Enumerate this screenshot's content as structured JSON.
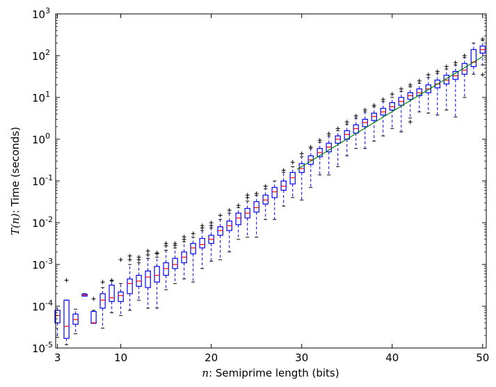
{
  "chart_data": {
    "type": "box",
    "xlabel": {
      "var": "n",
      "text": ": Semiprime length (bits)"
    },
    "ylabel": {
      "var": "T(n)",
      "text": ": Time (seconds)"
    },
    "xlim": [
      2.8,
      50.4
    ],
    "ylim": [
      1e-05,
      1000
    ],
    "yscale": "log",
    "x_ticks": [
      3,
      10,
      20,
      30,
      40,
      50
    ],
    "y_ticks": [
      {
        "exp": -5,
        "label_base": "10",
        "label_exp": "-5"
      },
      {
        "exp": -4,
        "label_base": "10",
        "label_exp": "-4"
      },
      {
        "exp": -3,
        "label_base": "10",
        "label_exp": "-3"
      },
      {
        "exp": -2,
        "label_base": "10",
        "label_exp": "-2"
      },
      {
        "exp": -1,
        "label_base": "10",
        "label_exp": "-1"
      },
      {
        "exp": 0,
        "label_base": "10",
        "label_exp": "0"
      },
      {
        "exp": 1,
        "label_base": "10",
        "label_exp": "1"
      },
      {
        "exp": 2,
        "label_base": "10",
        "label_exp": "2"
      },
      {
        "exp": 3,
        "label_base": "10",
        "label_exp": "3"
      }
    ],
    "grid": false,
    "colors": {
      "box": "#0000ff",
      "median": "#ff0000",
      "flier": "#000000",
      "fit": "#008000"
    },
    "fit_line": {
      "x": [
        29.5,
        50
      ],
      "y": [
        0.19,
        95
      ]
    },
    "boxes": [
      {
        "n": 3,
        "whislo": 1.8e-05,
        "q1": 4e-05,
        "med": 6e-05,
        "q3": 8e-05,
        "whishi": 0.0001,
        "fliers": []
      },
      {
        "n": 4,
        "whislo": 1.2e-05,
        "q1": 1.7e-05,
        "med": 3.3e-05,
        "q3": 0.00014,
        "whishi": 0.00014,
        "fliers": [
          0.00042
        ]
      },
      {
        "n": 5,
        "whislo": 2.2e-05,
        "q1": 3.7e-05,
        "med": 4.8e-05,
        "q3": 6.5e-05,
        "whishi": 8.5e-05,
        "fliers": []
      },
      {
        "n": 6,
        "whislo": 0.000175,
        "q1": 0.000175,
        "med": 0.000185,
        "q3": 0.000195,
        "whishi": 0.0002,
        "fliers": []
      },
      {
        "n": 7,
        "whislo": 3.9e-05,
        "q1": 3.9e-05,
        "med": 4e-05,
        "q3": 7.5e-05,
        "whishi": 8e-05,
        "fliers": [
          0.00015
        ]
      },
      {
        "n": 8,
        "whislo": 3e-05,
        "q1": 9e-05,
        "med": 0.00014,
        "q3": 0.0002,
        "whishi": 0.00028,
        "fliers": [
          0.00038
        ]
      },
      {
        "n": 9,
        "whislo": 7e-05,
        "q1": 0.00013,
        "med": 0.00016,
        "q3": 0.00032,
        "whishi": 0.0004,
        "fliers": [
          0.00042
        ]
      },
      {
        "n": 10,
        "whislo": 6e-05,
        "q1": 0.00013,
        "med": 0.00018,
        "q3": 0.00022,
        "whishi": 0.00035,
        "fliers": [
          0.0013
        ]
      },
      {
        "n": 11,
        "whislo": 8e-05,
        "q1": 0.0002,
        "med": 0.00035,
        "q3": 0.00045,
        "whishi": 0.001,
        "fliers": [
          0.0013,
          0.0016
        ]
      },
      {
        "n": 12,
        "whislo": 0.00014,
        "q1": 0.0003,
        "med": 0.0004,
        "q3": 0.00055,
        "whishi": 0.0011,
        "fliers": [
          0.0013,
          0.0015
        ]
      },
      {
        "n": 13,
        "whislo": 9e-05,
        "q1": 0.00028,
        "med": 0.0005,
        "q3": 0.0007,
        "whishi": 0.0014,
        "fliers": [
          0.0017,
          0.0021
        ]
      },
      {
        "n": 14,
        "whislo": 9e-05,
        "q1": 0.00038,
        "med": 0.00055,
        "q3": 0.0009,
        "whishi": 0.0015,
        "fliers": [
          0.0018,
          0.0019
        ]
      },
      {
        "n": 15,
        "whislo": 0.00025,
        "q1": 0.00055,
        "med": 0.0008,
        "q3": 0.0011,
        "whishi": 0.0022,
        "fliers": [
          0.0028,
          0.0032
        ]
      },
      {
        "n": 16,
        "whislo": 0.00035,
        "q1": 0.0008,
        "med": 0.001,
        "q3": 0.0014,
        "whishi": 0.0025,
        "fliers": [
          0.0029,
          0.0032
        ]
      },
      {
        "n": 17,
        "whislo": 0.00045,
        "q1": 0.0011,
        "med": 0.0015,
        "q3": 0.002,
        "whishi": 0.0035,
        "fliers": [
          0.004,
          0.0046
        ]
      },
      {
        "n": 18,
        "whislo": 0.00038,
        "q1": 0.0018,
        "med": 0.0025,
        "q3": 0.0032,
        "whishi": 0.0045,
        "fliers": [
          0.0055
        ]
      },
      {
        "n": 19,
        "whislo": 0.0008,
        "q1": 0.0025,
        "med": 0.003,
        "q3": 0.0042,
        "whishi": 0.0065,
        "fliers": [
          0.0075,
          0.0085
        ]
      },
      {
        "n": 20,
        "whislo": 0.0012,
        "q1": 0.0032,
        "med": 0.004,
        "q3": 0.005,
        "whishi": 0.0075,
        "fliers": [
          0.0085,
          0.01
        ]
      },
      {
        "n": 21,
        "whislo": 0.0013,
        "q1": 0.005,
        "med": 0.0065,
        "q3": 0.008,
        "whishi": 0.012,
        "fliers": [
          0.015
        ]
      },
      {
        "n": 22,
        "whislo": 0.002,
        "q1": 0.0065,
        "med": 0.0085,
        "q3": 0.011,
        "whishi": 0.017,
        "fliers": [
          0.02
        ]
      },
      {
        "n": 23,
        "whislo": 0.004,
        "q1": 0.009,
        "med": 0.013,
        "q3": 0.017,
        "whishi": 0.023,
        "fliers": [
          0.026
        ]
      },
      {
        "n": 24,
        "whislo": 0.0045,
        "q1": 0.013,
        "med": 0.017,
        "q3": 0.022,
        "whishi": 0.033,
        "fliers": [
          0.04,
          0.046
        ]
      },
      {
        "n": 25,
        "whislo": 0.0045,
        "q1": 0.018,
        "med": 0.023,
        "q3": 0.032,
        "whishi": 0.045,
        "fliers": [
          0.05
        ]
      },
      {
        "n": 26,
        "whislo": 0.012,
        "q1": 0.028,
        "med": 0.035,
        "q3": 0.046,
        "whishi": 0.065,
        "fliers": [
          0.075
        ]
      },
      {
        "n": 27,
        "whislo": 0.012,
        "q1": 0.04,
        "med": 0.055,
        "q3": 0.07,
        "whishi": 0.1,
        "fliers": []
      },
      {
        "n": 28,
        "whislo": 0.025,
        "q1": 0.06,
        "med": 0.075,
        "q3": 0.1,
        "whishi": 0.16,
        "fliers": [
          0.18
        ]
      },
      {
        "n": 29,
        "whislo": 0.04,
        "q1": 0.085,
        "med": 0.12,
        "q3": 0.16,
        "whishi": 0.22,
        "fliers": [
          0.28
        ]
      },
      {
        "n": 30,
        "whislo": 0.035,
        "q1": 0.16,
        "med": 0.2,
        "q3": 0.26,
        "whishi": 0.38,
        "fliers": [
          0.45
        ]
      },
      {
        "n": 31,
        "whislo": 0.07,
        "q1": 0.25,
        "med": 0.32,
        "q3": 0.4,
        "whishi": 0.6,
        "fliers": [
          0.65
        ]
      },
      {
        "n": 32,
        "whislo": 0.14,
        "q1": 0.38,
        "med": 0.48,
        "q3": 0.6,
        "whishi": 0.85,
        "fliers": [
          0.95
        ]
      },
      {
        "n": 33,
        "whislo": 0.14,
        "q1": 0.5,
        "med": 0.65,
        "q3": 0.8,
        "whishi": 1.2,
        "fliers": [
          1.35
        ]
      },
      {
        "n": 34,
        "whislo": 0.22,
        "q1": 0.8,
        "med": 1.0,
        "q3": 1.2,
        "whishi": 1.6,
        "fliers": [
          1.8
        ]
      },
      {
        "n": 35,
        "whislo": 0.4,
        "q1": 1.0,
        "med": 1.3,
        "q3": 1.6,
        "whishi": 2.3,
        "fliers": [
          2.6
        ]
      },
      {
        "n": 36,
        "whislo": 0.6,
        "q1": 1.4,
        "med": 1.8,
        "q3": 2.2,
        "whishi": 3.2,
        "fliers": [
          3.6
        ]
      },
      {
        "n": 37,
        "whislo": 0.6,
        "q1": 2.0,
        "med": 2.5,
        "q3": 3.0,
        "whishi": 4.5,
        "fliers": [
          5
        ]
      },
      {
        "n": 38,
        "whislo": 0.9,
        "q1": 2.8,
        "med": 3.5,
        "q3": 4.2,
        "whishi": 6.0,
        "fliers": [
          6.5
        ]
      },
      {
        "n": 39,
        "whislo": 1.2,
        "q1": 3.8,
        "med": 4.5,
        "q3": 5.5,
        "whishi": 8,
        "fliers": [
          9
        ]
      },
      {
        "n": 40,
        "whislo": 1.8,
        "q1": 5.0,
        "med": 6.0,
        "q3": 7.5,
        "whishi": 10,
        "fliers": [
          12
        ]
      },
      {
        "n": 41,
        "whislo": 1.5,
        "q1": 6.5,
        "med": 8.0,
        "q3": 10,
        "whishi": 14,
        "fliers": [
          16
        ]
      },
      {
        "n": 42,
        "whislo": 3.2,
        "q1": 9,
        "med": 11,
        "q3": 13,
        "whishi": 18,
        "fliers": [
          2.6,
          20
        ]
      },
      {
        "n": 43,
        "whislo": 4.5,
        "q1": 11,
        "med": 13,
        "q3": 16,
        "whishi": 22,
        "fliers": [
          25
        ]
      },
      {
        "n": 44,
        "whislo": 4.2,
        "q1": 13,
        "med": 16,
        "q3": 20,
        "whishi": 30,
        "fliers": [
          35
        ]
      },
      {
        "n": 45,
        "whislo": 3.8,
        "q1": 17,
        "med": 21,
        "q3": 26,
        "whishi": 38,
        "fliers": [
          42
        ]
      },
      {
        "n": 46,
        "whislo": 5,
        "q1": 21,
        "med": 26,
        "q3": 34,
        "whishi": 48,
        "fliers": [
          55
        ]
      },
      {
        "n": 47,
        "whislo": 3.4,
        "q1": 27,
        "med": 33,
        "q3": 42,
        "whishi": 60,
        "fliers": [
          68
        ]
      },
      {
        "n": 48,
        "whislo": 10,
        "q1": 36,
        "med": 45,
        "q3": 65,
        "whishi": 90,
        "fliers": [
          100
        ]
      },
      {
        "n": 49,
        "whislo": 36,
        "q1": 55,
        "med": 70,
        "q3": 140,
        "whishi": 200,
        "fliers": []
      },
      {
        "n": 50,
        "whislo": 60,
        "q1": 115,
        "med": 140,
        "q3": 170,
        "whishi": 230,
        "fliers": [
          35,
          250
        ]
      }
    ]
  }
}
